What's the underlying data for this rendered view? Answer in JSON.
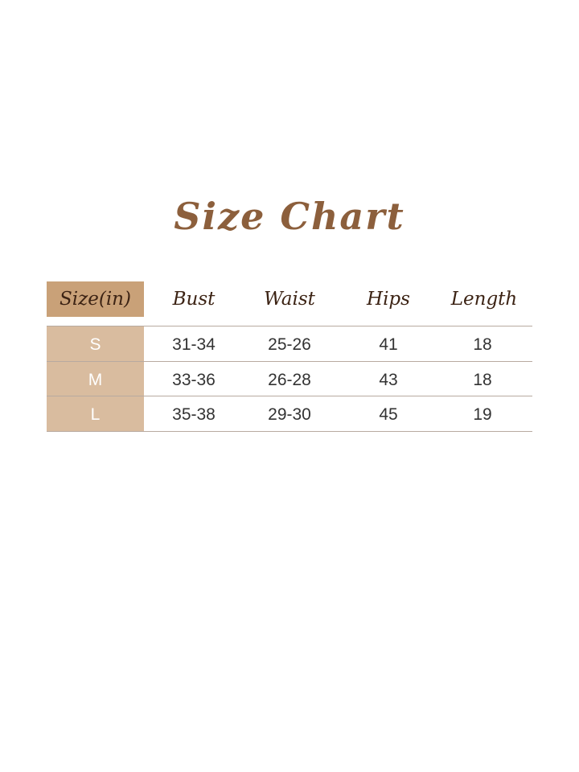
{
  "title": "Size Chart",
  "table": {
    "headers": [
      "Size(in)",
      "Bust",
      "Waist",
      "Hips",
      "Length"
    ],
    "rows": [
      [
        "S",
        "31-34",
        "25-26",
        "41",
        "18"
      ],
      [
        "M",
        "33-36",
        "26-28",
        "43",
        "18"
      ],
      [
        "L",
        "35-38",
        "29-30",
        "45",
        "19"
      ]
    ]
  },
  "colors": {
    "title": "#8c5f3c",
    "header_size_bg": "#c9a178",
    "size_column_bg": "#d9bc9f",
    "header_text": "#3c2314"
  }
}
